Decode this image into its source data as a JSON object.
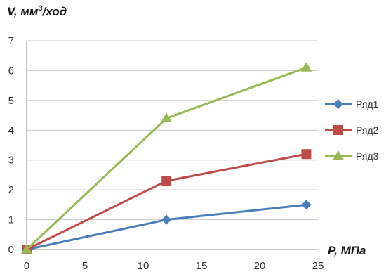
{
  "chart_data": {
    "type": "line",
    "xlabel": "P, МПа",
    "ylabel_prefix": "V, мм",
    "ylabel_sup": "3",
    "ylabel_suffix": "/ход",
    "xlim": [
      0,
      25
    ],
    "ylim": [
      0,
      7
    ],
    "x_ticks": [
      0,
      5,
      10,
      15,
      20,
      25
    ],
    "y_ticks": [
      0,
      1,
      2,
      3,
      4,
      5,
      6,
      7
    ],
    "grid": "horizontal",
    "legend_position": "right",
    "series": [
      {
        "name": "Ряд1",
        "color": "#4a7ebb",
        "marker": "diamond",
        "x": [
          0,
          12,
          24
        ],
        "y": [
          0,
          1,
          1.5
        ]
      },
      {
        "name": "Ряд2",
        "color": "#be4b48",
        "marker": "square",
        "x": [
          0,
          12,
          24
        ],
        "y": [
          0,
          2.3,
          3.2
        ]
      },
      {
        "name": "Ряд3",
        "color": "#98b954",
        "marker": "triangle",
        "x": [
          0,
          12,
          24
        ],
        "y": [
          0,
          4.4,
          6.1
        ]
      }
    ]
  }
}
